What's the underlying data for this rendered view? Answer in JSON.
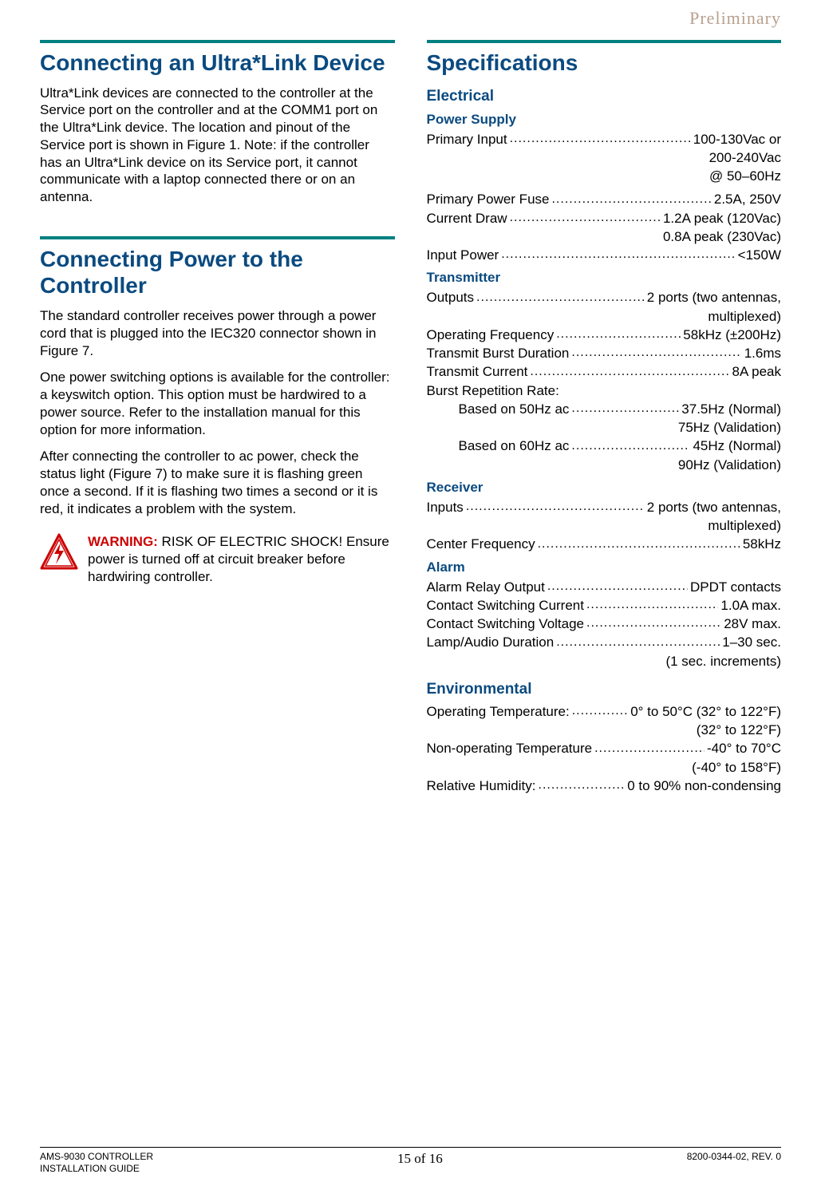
{
  "header": {
    "stamp": "Preliminary"
  },
  "colors": {
    "rule": "#008080",
    "heading": "#0a4a80",
    "warning": "#cc0000",
    "text": "#000000",
    "stamp": "#b8a090"
  },
  "left": {
    "sections": [
      {
        "title": "Connecting an Ultra*Link Device",
        "paragraphs": [
          "Ultra*Link devices are connected to the controller at the Service port on the controller and at the COMM1 port on the Ultra*Link device. The location and pinout of the Service port is shown in Figure 1. Note: if the controller has an Ultra*Link device on its Service port, it cannot communicate with a laptop connected there or on an antenna."
        ]
      },
      {
        "title": "Connecting Power to the Controller",
        "paragraphs": [
          "The standard controller receives power through a power cord that is plugged into the IEC320 connector shown in Figure 7.",
          "One power switching options is available for the controller: a keyswitch option. This option must be hardwired to a power source. Refer to the installation manual for this option for more information.",
          "After connecting the controller to ac power, check the status light (Figure 7) to make sure it is flashing green once a second. If it is flashing two times a second or it is red, it indicates a problem with the system."
        ]
      }
    ],
    "warning": {
      "label": "WARNING:",
      "text": " RISK OF ELECTRIC SHOCK! Ensure power is turned off at circuit breaker before hardwiring controller."
    }
  },
  "right": {
    "title": "Specifications",
    "groups": [
      {
        "heading": "Electrical",
        "subgroups": [
          {
            "heading": "Power Supply",
            "rows": [
              {
                "label": "Primary Input",
                "value": "100-130Vac or",
                "cont": [
                  "200-240Vac",
                  "@ 50–60Hz"
                ],
                "gapBefore": false
              },
              {
                "label": "Primary Power Fuse",
                "value": "2.5A, 250V",
                "gapBefore": true
              },
              {
                "label": "Current Draw",
                "value": "1.2A peak (120Vac)",
                "cont": [
                  "0.8A peak (230Vac)"
                ]
              },
              {
                "label": "Input Power",
                "value": "<150W"
              }
            ]
          },
          {
            "heading": "Transmitter",
            "rows": [
              {
                "label": "Outputs",
                "value": "2 ports (two antennas,",
                "cont": [
                  "multiplexed)"
                ]
              },
              {
                "label": "Operating Frequency",
                "value": "58kHz (±200Hz)"
              },
              {
                "label": "Transmit Burst Duration",
                "value": "1.6ms"
              },
              {
                "label": "Transmit Current",
                "value": "8A peak"
              },
              {
                "plain": "Burst Repetition Rate:"
              },
              {
                "label": "Based on 50Hz ac",
                "value": "37.5Hz (Normal)",
                "cont": [
                  "75Hz (Validation)"
                ],
                "indent": true
              },
              {
                "label": "Based on 60Hz ac",
                "value": "45Hz (Normal)",
                "cont": [
                  "90Hz (Validation)"
                ],
                "indent": true
              }
            ]
          },
          {
            "heading": "Receiver",
            "rows": [
              {
                "label": "Inputs",
                "value": "2 ports (two antennas,",
                "cont": [
                  "multiplexed)"
                ]
              },
              {
                "label": "Center Frequency",
                "value": "58kHz"
              }
            ]
          },
          {
            "heading": "Alarm",
            "rows": [
              {
                "label": "Alarm Relay Output",
                "value": "DPDT contacts"
              },
              {
                "label": "Contact Switching Current",
                "value": "1.0A max."
              },
              {
                "label": "Contact Switching Voltage",
                "value": "28V max."
              },
              {
                "label": "Lamp/Audio Duration",
                "value": "1–30 sec.",
                "cont": [
                  "(1 sec. increments)"
                ]
              }
            ]
          }
        ]
      },
      {
        "heading": "Environmental",
        "subgroups": [
          {
            "heading": null,
            "rows": [
              {
                "label": "Operating Temperature:",
                "value": "0° to 50°C (32° to 122°F)",
                "cont": [
                  "(32° to 122°F)"
                ]
              },
              {
                "label": "Non-operating Temperature",
                "value": "-40° to 70°C",
                "cont": [
                  "(-40° to 158°F)"
                ]
              },
              {
                "label": "Relative Humidity:",
                "value": "0 to 90% non-condensing"
              }
            ]
          }
        ]
      }
    ]
  },
  "footer": {
    "left_line1": "AMS-9030 CONTROLLER",
    "left_line2": "INSTALLATION GUIDE",
    "center": "15 of 16",
    "right": "8200-0344-02, REV. 0"
  }
}
